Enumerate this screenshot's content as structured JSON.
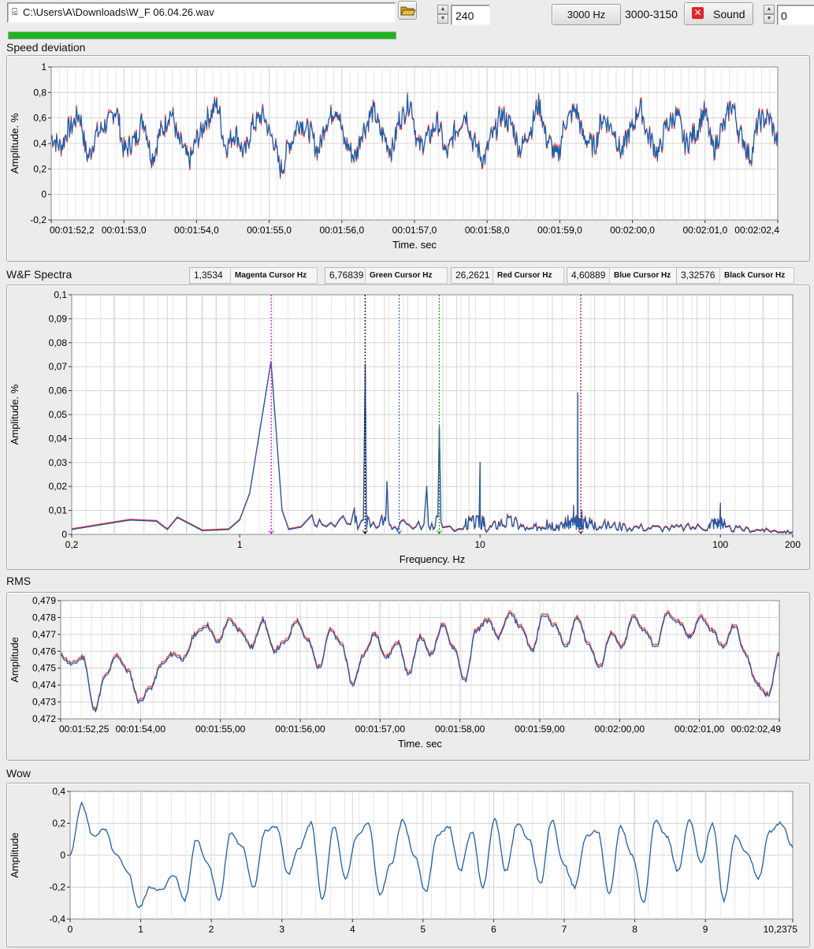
{
  "toolbar": {
    "file_path": "C:\\Users\\A\\Downloads\\W_F 06.04.26.wav",
    "file_value": "240",
    "freq_button": "3000 Hz",
    "freq_range": "3000-3150",
    "sound_button": "Sound",
    "right_value": "0",
    "progress": 1.0,
    "progress_color": "#1db41d"
  },
  "colors": {
    "series_main": "#1f5ea8",
    "series_ref": "#ff2020",
    "grid": "#d4d4d4"
  },
  "speed": {
    "title": "Speed deviation",
    "chart_data": {
      "type": "line",
      "ylabel": "Amplitude. %",
      "xlabel": "Time. sec",
      "ylim": [
        -0.2,
        1
      ],
      "yticks": [
        "1",
        "0,8",
        "0,6",
        "0,4",
        "0,2",
        "0",
        "-0,2"
      ],
      "xticks": [
        "00:01:52,2",
        "00:01:53,0",
        "00:01:54,0",
        "00:01:55,0",
        "00:01:56,0",
        "00:01:57,0",
        "00:01:58,0",
        "00:01:59,0",
        "00:02:00,0",
        "00:02:01,0",
        "00:02:02,4"
      ],
      "series": [
        {
          "values": [
            0.45,
            0.38,
            0.52,
            0.62,
            0.3,
            0.48,
            0.55,
            0.66,
            0.35,
            0.42,
            0.58,
            0.3,
            0.5,
            0.64,
            0.4,
            0.27,
            0.45,
            0.6,
            0.7,
            0.38,
            0.48,
            0.33,
            0.55,
            0.62,
            0.45,
            0.2,
            0.41,
            0.57,
            0.5,
            0.35,
            0.58,
            0.68,
            0.4,
            0.3,
            0.52,
            0.65,
            0.47,
            0.35,
            0.6,
            0.72,
            0.38,
            0.45,
            0.56,
            0.32,
            0.5,
            0.63,
            0.4,
            0.28,
            0.46,
            0.62,
            0.55,
            0.36,
            0.5,
            0.7,
            0.42,
            0.3,
            0.58,
            0.66,
            0.44,
            0.38,
            0.6,
            0.52,
            0.34,
            0.5,
            0.68,
            0.45,
            0.33,
            0.55,
            0.62,
            0.4,
            0.48,
            0.64,
            0.36,
            0.52,
            0.7,
            0.46,
            0.3,
            0.58,
            0.6,
            0.42
          ]
        }
      ]
    }
  },
  "spectra": {
    "title": "W&F Spectra",
    "cursors": [
      {
        "value": "1,3534",
        "label": "Magenta Cursor Hz"
      },
      {
        "value": "6,76839",
        "label": "Green Cursor Hz"
      },
      {
        "value": "26,2621",
        "label": "Red Cursor Hz"
      },
      {
        "value": "4,60889",
        "label": "Blue Cursor Hz"
      },
      {
        "value": "3,32576",
        "label": "Black Cursor Hz"
      }
    ],
    "chart_data": {
      "type": "line",
      "ylabel": "Amplitude. %",
      "xlabel": "Frequency. Hz",
      "xscale": "log",
      "xlim": [
        0.2,
        200
      ],
      "ylim": [
        0,
        0.1
      ],
      "yticks": [
        "0,1",
        "0,09",
        "0,08",
        "0,07",
        "0,06",
        "0,05",
        "0,04",
        "0,03",
        "0,02",
        "0,01",
        "0"
      ],
      "xticks": [
        "0,2",
        "1",
        "10",
        "100",
        "200"
      ],
      "cursor_lines": [
        {
          "x": 1.3534,
          "color": "#e000e0"
        },
        {
          "x": 3.32576,
          "color": "#000000"
        },
        {
          "x": 4.60889,
          "color": "#3060d0"
        },
        {
          "x": 6.76839,
          "color": "#00a000"
        },
        {
          "x": 26.2621,
          "color": "#a00020"
        }
      ],
      "points": [
        [
          0.2,
          0.002
        ],
        [
          0.35,
          0.006
        ],
        [
          0.45,
          0.0055
        ],
        [
          0.5,
          0.002
        ],
        [
          0.55,
          0.007
        ],
        [
          0.7,
          0.0015
        ],
        [
          0.9,
          0.002
        ],
        [
          1.0,
          0.006
        ],
        [
          1.1,
          0.017
        ],
        [
          1.35,
          0.072
        ],
        [
          1.5,
          0.01
        ],
        [
          1.6,
          0.002
        ],
        [
          1.8,
          0.003
        ],
        [
          2.0,
          0.008
        ],
        [
          2.2,
          0.004
        ],
        [
          2.6,
          0.006
        ],
        [
          3.0,
          0.011
        ],
        [
          3.1,
          0.002
        ],
        [
          3.33,
          0.071
        ],
        [
          3.5,
          0.003
        ],
        [
          3.9,
          0.008
        ],
        [
          4.1,
          0.022
        ],
        [
          4.3,
          0.002
        ],
        [
          4.8,
          0.006
        ],
        [
          5.4,
          0.003
        ],
        [
          6.0,
          0.02
        ],
        [
          6.4,
          0.002
        ],
        [
          6.77,
          0.045
        ],
        [
          7.2,
          0.003
        ],
        [
          8.5,
          0.002
        ],
        [
          10.0,
          0.03
        ],
        [
          10.5,
          0.002
        ],
        [
          13,
          0.008
        ],
        [
          16,
          0.002
        ],
        [
          19,
          0.006
        ],
        [
          22,
          0.004
        ],
        [
          24.5,
          0.012
        ],
        [
          25.5,
          0.059
        ],
        [
          26.5,
          0.01
        ],
        [
          30,
          0.005
        ],
        [
          40,
          0.004
        ],
        [
          60,
          0.003
        ],
        [
          90,
          0.004
        ],
        [
          100,
          0.013
        ],
        [
          105,
          0.003
        ],
        [
          150,
          0.002
        ],
        [
          200,
          0.001
        ]
      ]
    }
  },
  "rms": {
    "title": "RMS",
    "chart_data": {
      "type": "line",
      "ylabel": "Amplitude",
      "xlabel": "Time. sec",
      "ylim": [
        0.472,
        0.479
      ],
      "yticks": [
        "0,479",
        "0,478",
        "0,477",
        "0,476",
        "0,475",
        "0,474",
        "0,473",
        "0,472"
      ],
      "xticks": [
        "00:01:52,25",
        "00:01:54,00",
        "00:01:55,00",
        "00:01:56,00",
        "00:01:57,00",
        "00:01:58,00",
        "00:01:59,00",
        "00:02:00,00",
        "00:02:01,00",
        "00:02:02,49"
      ],
      "series": [
        {
          "values": [
            0.4757,
            0.4752,
            0.4756,
            0.4725,
            0.4745,
            0.4757,
            0.4748,
            0.473,
            0.4738,
            0.4752,
            0.4758,
            0.4755,
            0.477,
            0.4775,
            0.4765,
            0.4778,
            0.4772,
            0.4762,
            0.4778,
            0.476,
            0.4765,
            0.4778,
            0.4766,
            0.475,
            0.4772,
            0.4764,
            0.474,
            0.4758,
            0.477,
            0.4756,
            0.4765,
            0.4746,
            0.4768,
            0.4758,
            0.4775,
            0.4762,
            0.4742,
            0.4772,
            0.4778,
            0.4768,
            0.4782,
            0.4774,
            0.476,
            0.4782,
            0.4775,
            0.4762,
            0.478,
            0.4764,
            0.475,
            0.477,
            0.4762,
            0.478,
            0.4772,
            0.4762,
            0.4782,
            0.4777,
            0.4768,
            0.478,
            0.4772,
            0.4762,
            0.4775,
            0.4758,
            0.474,
            0.4734,
            0.4758
          ]
        }
      ]
    }
  },
  "wow": {
    "title": "Wow",
    "chart_data": {
      "type": "line",
      "ylabel": "Amplitude",
      "xlim": [
        0,
        10.2375
      ],
      "ylim": [
        -0.4,
        0.4
      ],
      "yticks": [
        "0,4",
        "0,2",
        "0",
        "-0,2",
        "-0,4"
      ],
      "xticks": [
        "0",
        "1",
        "2",
        "3",
        "4",
        "5",
        "6",
        "7",
        "8",
        "9",
        "10,2375"
      ],
      "series": [
        {
          "values": [
            0.0,
            0.32,
            0.12,
            0.16,
            0.0,
            -0.1,
            -0.33,
            -0.2,
            -0.22,
            -0.12,
            -0.28,
            0.1,
            -0.05,
            -0.28,
            0.14,
            0.05,
            -0.2,
            0.15,
            0.18,
            -0.12,
            0.05,
            0.2,
            -0.28,
            0.18,
            -0.15,
            0.12,
            0.2,
            -0.25,
            -0.05,
            0.22,
            0.0,
            -0.23,
            0.12,
            0.18,
            -0.1,
            0.15,
            -0.2,
            0.23,
            -0.1,
            0.2,
            0.1,
            -0.18,
            0.22,
            -0.05,
            -0.2,
            0.12,
            0.15,
            -0.25,
            0.18,
            0.0,
            -0.3,
            0.22,
            0.12,
            -0.1,
            0.22,
            -0.05,
            0.2,
            -0.28,
            0.12,
            0.02,
            -0.15,
            0.15,
            0.2,
            0.05
          ]
        }
      ]
    }
  }
}
